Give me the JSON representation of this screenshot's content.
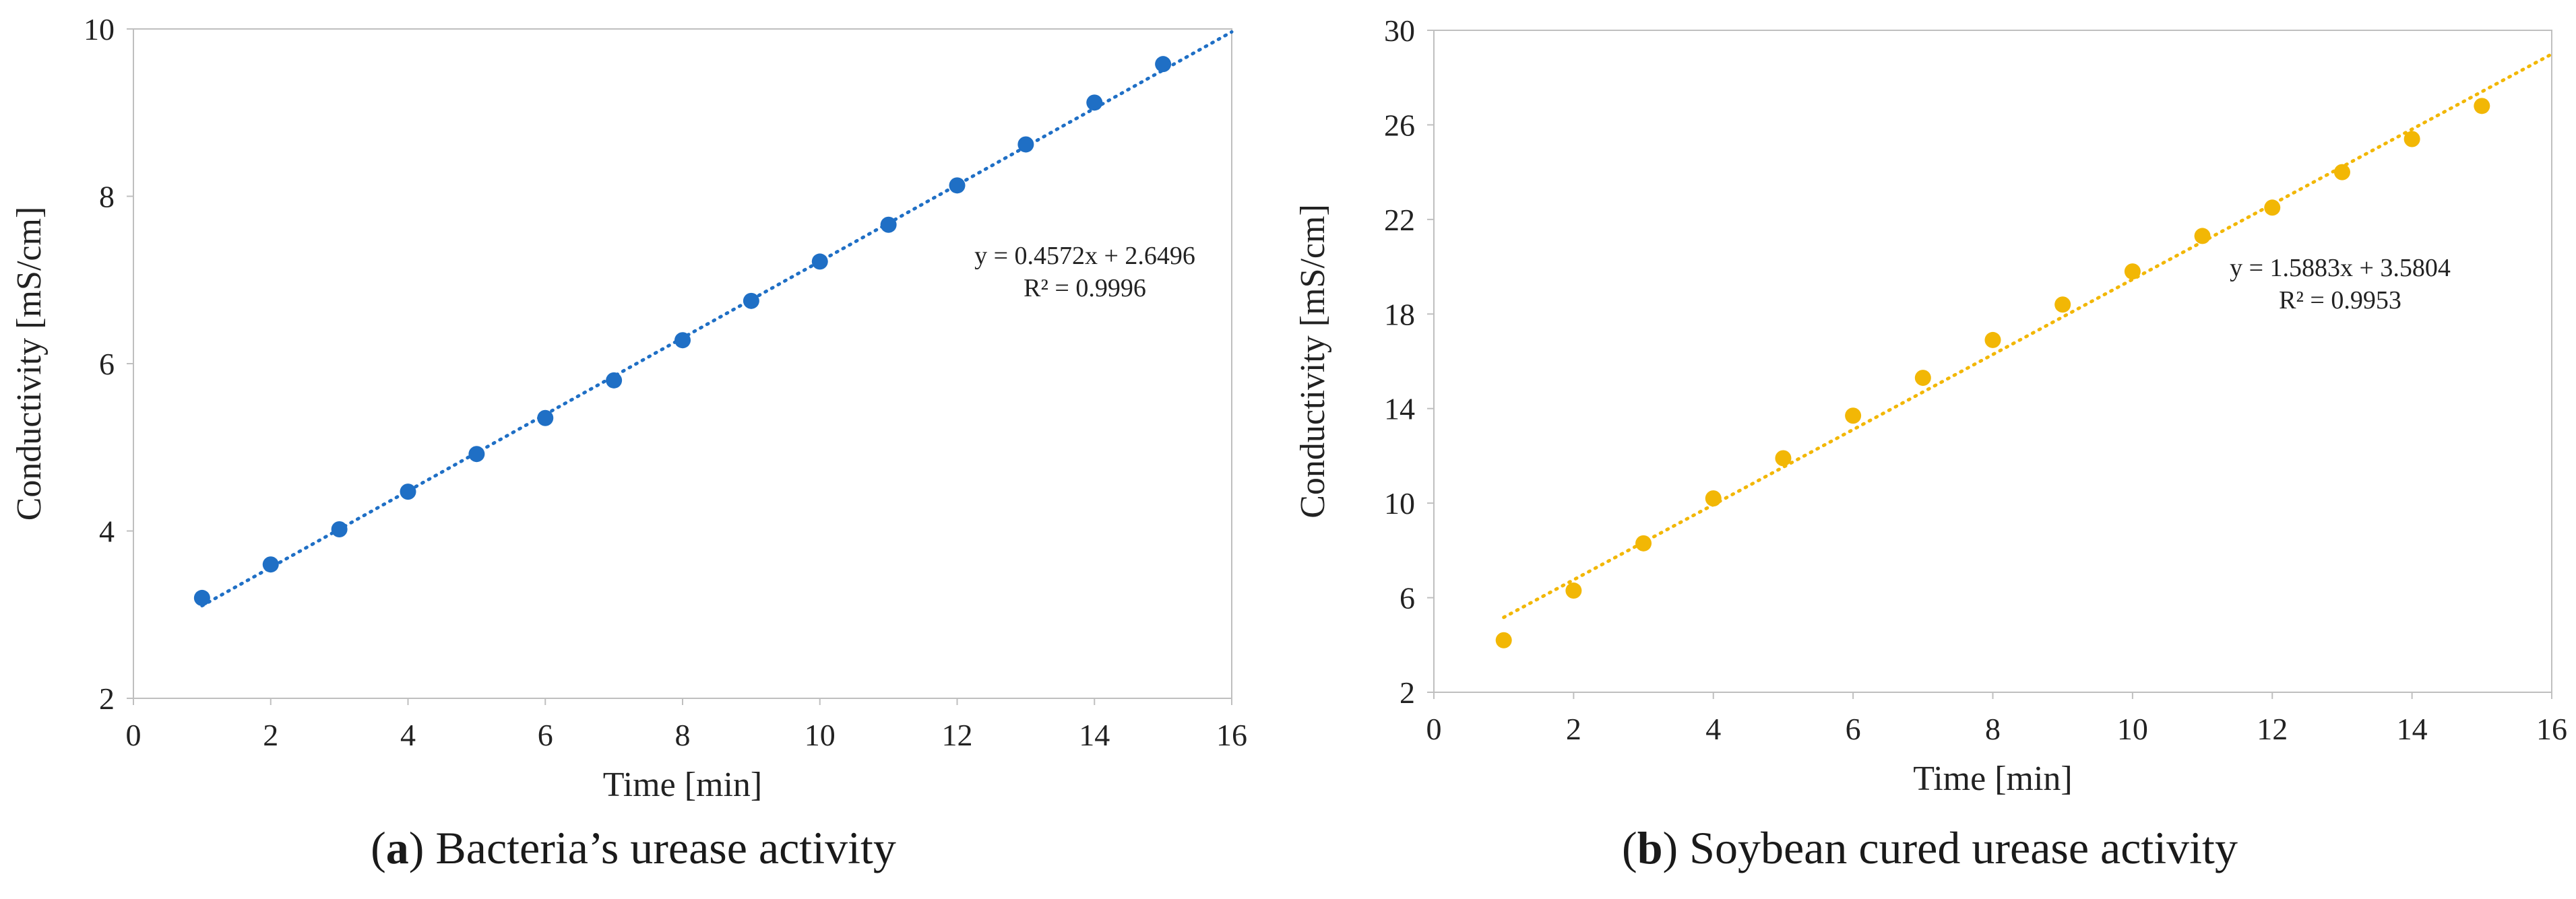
{
  "figures": [
    {
      "caption_letter": "a",
      "caption_text": ") Bacteria’s urease activity",
      "chart_data": {
        "type": "scatter",
        "xlabel": "Time [min]",
        "ylabel": "Conductivity [mS/cm]",
        "xlim": [
          0,
          16
        ],
        "ylim": [
          2,
          10
        ],
        "xticks": [
          0,
          2,
          4,
          6,
          8,
          10,
          12,
          14,
          16
        ],
        "yticks": [
          2,
          4,
          6,
          8,
          10
        ],
        "grid": false,
        "color": "#1f6fc5",
        "series": [
          {
            "name": "Conductivity",
            "x": [
              1,
              2,
              3,
              4,
              5,
              6,
              7,
              8,
              9,
              10,
              11,
              12,
              13,
              14,
              15
            ],
            "y": [
              3.2,
              3.6,
              4.02,
              4.47,
              4.92,
              5.35,
              5.8,
              6.28,
              6.75,
              7.22,
              7.66,
              8.13,
              8.62,
              9.12,
              9.58
            ]
          }
        ],
        "trendline": {
          "slope": 0.4572,
          "intercept": 2.6496,
          "x_range": [
            1,
            16
          ]
        },
        "equation": "y = 0.4572x + 2.6496",
        "r_squared": "R² = 0.9996"
      }
    },
    {
      "caption_letter": "b",
      "caption_text": ") Soybean cured urease activity",
      "chart_data": {
        "type": "scatter",
        "xlabel": "Time [min]",
        "ylabel": "Conductivity [mS/cm]",
        "xlim": [
          0,
          16
        ],
        "ylim": [
          2,
          30
        ],
        "xticks": [
          0,
          2,
          4,
          6,
          8,
          10,
          12,
          14,
          16
        ],
        "yticks": [
          2,
          6,
          10,
          14,
          18,
          22,
          26,
          30
        ],
        "grid": false,
        "color": "#f2b705",
        "series": [
          {
            "name": "Conductivity",
            "x": [
              1,
              2,
              3,
              4,
              5,
              6,
              7,
              8,
              9,
              10,
              11,
              12,
              13,
              14,
              15
            ],
            "y": [
              4.2,
              6.3,
              8.3,
              10.2,
              11.9,
              13.7,
              15.3,
              16.9,
              18.4,
              19.8,
              21.3,
              22.5,
              24.0,
              25.4,
              26.8
            ]
          }
        ],
        "trendline": {
          "slope": 1.5883,
          "intercept": 3.5804,
          "x_range": [
            1,
            16
          ]
        },
        "equation": "y = 1.5883x + 3.5804",
        "r_squared": "R² = 0.9953"
      }
    }
  ]
}
